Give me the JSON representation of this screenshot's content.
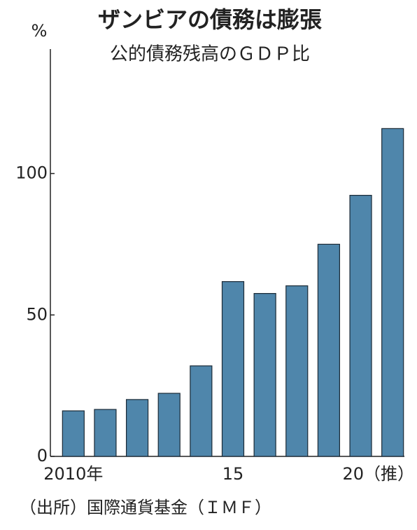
{
  "chart_data": {
    "type": "bar",
    "title": "ザンビアの債務は膨張",
    "subtitle": "公的債務残高のＧＤＰ比",
    "y_label": "%",
    "source": "（出所）国際通貨基金（ＩＭＦ）",
    "categories": [
      "2010年",
      null,
      null,
      null,
      null,
      "15",
      null,
      null,
      null,
      null,
      "20（推）"
    ],
    "values": [
      16.1,
      16.6,
      20.1,
      22.3,
      32,
      61.8,
      57.6,
      60.3,
      75,
      92.3,
      115.9
    ],
    "color": "#4f86ab",
    "ylim": [
      0,
      144
    ],
    "yticks": [
      0,
      50,
      100
    ]
  }
}
